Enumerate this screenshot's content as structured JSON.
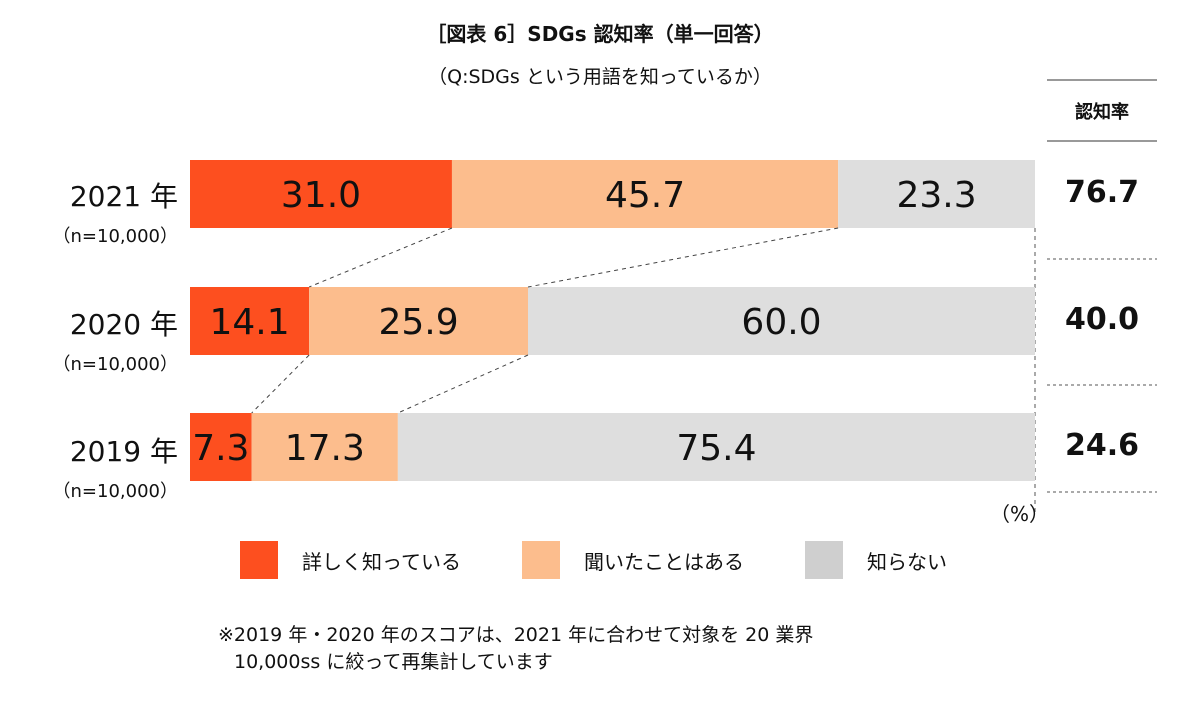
{
  "title": "［図表 6］SDGs 認知率（単一回答）",
  "subtitle": "（Q:SDGs という用語を知っているか）",
  "rate_header": "認知率",
  "unit": "（%）",
  "note_line1": "※2019 年・2020 年のスコアは、2021 年に合わせて対象を 20 業界",
  "note_line2": "10,000ss に絞って再集計しています",
  "colors": {
    "detail": "#fd4f1f",
    "heard": "#fcbd8d",
    "unknown": "#dedede",
    "legend_unknown": "#cfcfcf"
  },
  "chart_data": {
    "type": "bar",
    "orientation": "horizontal-stacked-100",
    "categories": [
      "2021 年",
      "2020 年",
      "2019 年"
    ],
    "sample_sizes": [
      "（n=10,000）",
      "（n=10,000）",
      "（n=10,000）"
    ],
    "series": [
      {
        "name": "詳しく知っている",
        "values": [
          31.0,
          14.1,
          7.3
        ]
      },
      {
        "name": "聞いたことはある",
        "values": [
          45.7,
          25.9,
          17.3
        ]
      },
      {
        "name": "知らない",
        "values": [
          23.3,
          60.0,
          75.4
        ]
      }
    ],
    "awareness_rate": [
      "76.7",
      "40.0",
      "24.6"
    ],
    "xlim": [
      0,
      100
    ],
    "legend_position": "bottom"
  }
}
